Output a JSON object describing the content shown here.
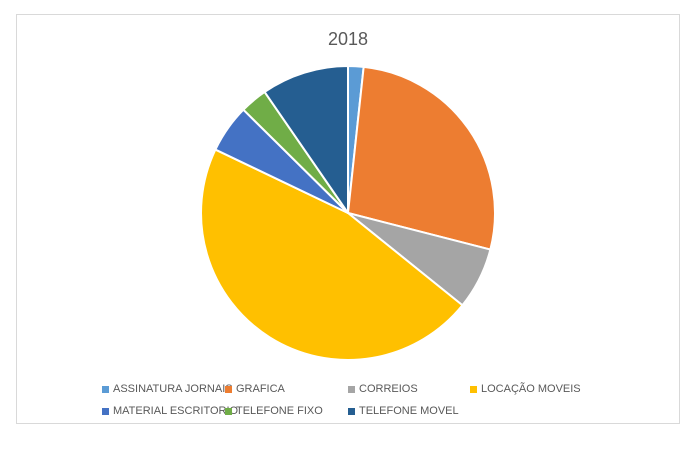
{
  "chart_data": {
    "type": "pie",
    "title": "2018",
    "categories": [
      "ASSINATURA JORNAIS",
      "GRAFICA",
      "CORREIOS",
      "LOCAÇÃO MOVEIS",
      "MATERIAL ESCRITORIO",
      "TELEFONE FIXO",
      "TELEFONE MOVEL"
    ],
    "values": [
      1.7,
      27.3,
      6.8,
      46.3,
      5.3,
      3.0,
      9.6
    ],
    "colors": [
      "#5b9bd5",
      "#ed7d31",
      "#a5a5a5",
      "#ffc000",
      "#4472c4",
      "#70ad47",
      "#255e91"
    ],
    "legend": "bottom"
  }
}
